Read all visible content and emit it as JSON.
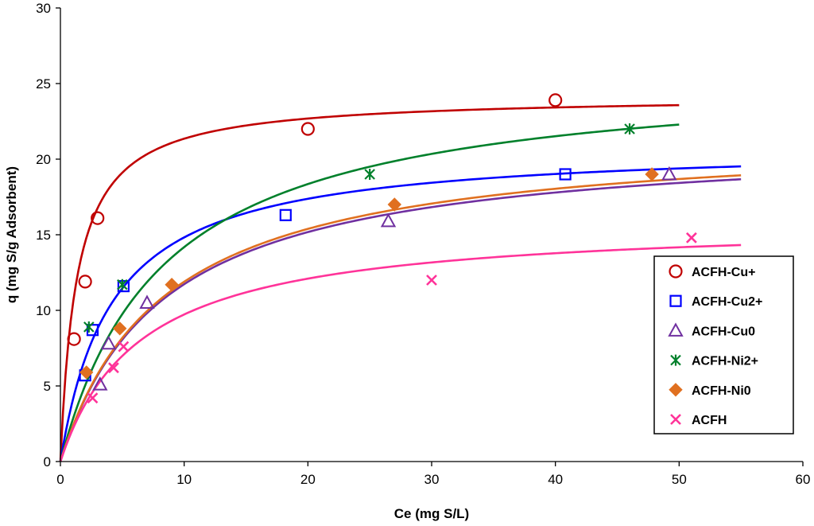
{
  "chart_data": {
    "type": "scatter",
    "title": "",
    "xlabel": "Ce (mg S/L)",
    "ylabel": "q (mg  S/g Adsorbent)",
    "xlim": [
      0,
      60
    ],
    "ylim": [
      0,
      30
    ],
    "xticks": [
      0,
      10,
      20,
      30,
      40,
      50,
      60
    ],
    "yticks": [
      0,
      5,
      10,
      15,
      20,
      25,
      30
    ],
    "grid": false,
    "legend_position": "right",
    "series": [
      {
        "name": "ACFH-Cu+",
        "marker": "circle",
        "color": "#c00000",
        "points": [
          [
            1.1,
            8.1
          ],
          [
            2.0,
            11.9
          ],
          [
            3.0,
            16.1
          ],
          [
            20.0,
            22.0
          ],
          [
            40.0,
            23.9
          ]
        ],
        "fit": {
          "model": "langmuir",
          "qmax": 24.2,
          "K": 0.75,
          "xmax": 50
        }
      },
      {
        "name": "ACFH-Cu2+",
        "marker": "square",
        "color": "#0000ff",
        "points": [
          [
            2.0,
            5.7
          ],
          [
            2.6,
            8.7
          ],
          [
            5.1,
            11.6
          ],
          [
            18.2,
            16.3
          ],
          [
            40.8,
            19.0
          ]
        ],
        "fit": {
          "model": "langmuir",
          "qmax": 21.0,
          "K": 0.24,
          "xmax": 55
        }
      },
      {
        "name": "ACFH-Cu0",
        "marker": "triangle",
        "color": "#7030a0",
        "points": [
          [
            3.2,
            5.1
          ],
          [
            3.9,
            7.8
          ],
          [
            7.0,
            10.5
          ],
          [
            26.5,
            15.9
          ],
          [
            49.2,
            19.0
          ]
        ],
        "fit": {
          "model": "langmuir",
          "qmax": 21.5,
          "K": 0.12,
          "xmax": 55
        }
      },
      {
        "name": "ACFH-Ni2+",
        "marker": "asterisk",
        "color": "#00802b",
        "points": [
          [
            2.3,
            8.9
          ],
          [
            5.0,
            11.7
          ],
          [
            25.0,
            19.0
          ],
          [
            46.0,
            22.0
          ]
        ],
        "fit": {
          "model": "langmuir",
          "qmax": 26.0,
          "K": 0.12,
          "xmax": 50
        }
      },
      {
        "name": "ACFH-Ni0",
        "marker": "diamond",
        "color": "#e07020",
        "points": [
          [
            2.1,
            5.9
          ],
          [
            4.8,
            8.8
          ],
          [
            9.0,
            11.7
          ],
          [
            27.0,
            17.0
          ],
          [
            47.8,
            19.0
          ]
        ],
        "fit": {
          "model": "langmuir",
          "qmax": 21.8,
          "K": 0.12,
          "xmax": 55
        }
      },
      {
        "name": "ACFH",
        "marker": "x",
        "color": "#ff3399",
        "points": [
          [
            2.6,
            4.2
          ],
          [
            4.3,
            6.2
          ],
          [
            5.1,
            7.6
          ],
          [
            30.0,
            12.0
          ],
          [
            51.0,
            14.8
          ]
        ],
        "fit": {
          "model": "langmuir",
          "qmax": 16.0,
          "K": 0.155,
          "xmax": 55
        }
      }
    ]
  }
}
